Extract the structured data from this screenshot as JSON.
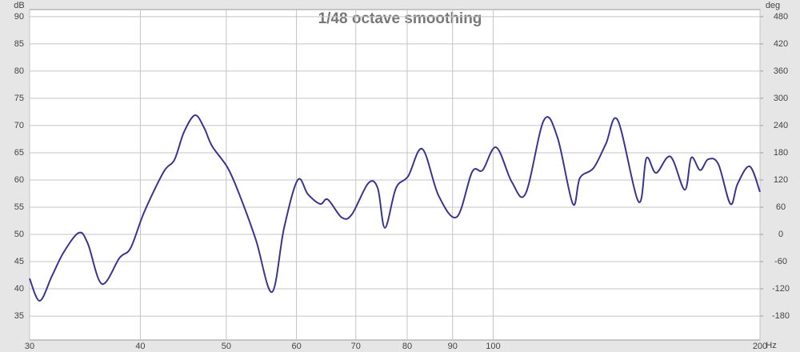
{
  "chart_data": {
    "type": "line",
    "title": "1/48 octave smoothing",
    "y_label": "dB",
    "y2_label": "deg",
    "x_label": "Hz",
    "x": [
      30,
      30.8,
      31.8,
      32.8,
      34.1,
      34.9,
      36.2,
      37.9,
      39.0,
      40.4,
      42.5,
      43.7,
      44.8,
      46.1,
      47.2,
      48.2,
      50.2,
      51.8,
      54.0,
      56.3,
      58.1,
      60.2,
      61.8,
      63.8,
      65.1,
      67.5,
      69.3,
      72.3,
      74.1,
      75.5,
      77.7,
      80.2,
      83.2,
      86.8,
      91.0,
      94.7,
      97.3,
      100.8,
      105.0,
      108.8,
      114.1,
      118.2,
      123.0,
      125.3,
      129.8,
      134.0,
      138.2,
      145.9,
      148.9,
      152.7,
      158.5,
      164.5,
      167.3,
      171.2,
      174.8,
      179.5,
      185.2,
      188.7,
      194.7,
      200
    ],
    "values": [
      41.9,
      37.8,
      42.4,
      46.8,
      50.3,
      48.3,
      40.9,
      45.7,
      47.5,
      54.1,
      61.5,
      63.7,
      68.8,
      71.9,
      69.6,
      66.2,
      62.2,
      57.1,
      49.0,
      39.4,
      51.2,
      60.0,
      57.4,
      55.6,
      56.4,
      53.1,
      53.7,
      59.4,
      58.5,
      51.2,
      58.5,
      60.7,
      65.7,
      57.1,
      53.2,
      61.5,
      61.8,
      66.0,
      59.6,
      57.5,
      71.0,
      67.8,
      55.6,
      60.4,
      62.2,
      66.6,
      71.0,
      56.0,
      64.0,
      61.3,
      64.3,
      58.2,
      64.1,
      61.8,
      63.8,
      62.9,
      55.6,
      59.3,
      62.5,
      57.8
    ],
    "color": "#3b3590",
    "xscale": "log",
    "xlim": [
      30,
      200
    ],
    "xticks": [
      30,
      40,
      50,
      60,
      70,
      80,
      90,
      100,
      200
    ],
    "ylim": [
      30.6,
      91.3
    ],
    "yticks": [
      35,
      40,
      45,
      50,
      55,
      60,
      65,
      70,
      75,
      80,
      85,
      90
    ],
    "y2lim": [
      -232.8,
      495.6
    ],
    "y2ticks": [
      -180,
      -120,
      -60,
      0,
      60,
      120,
      180,
      240,
      300,
      360,
      420,
      480
    ],
    "grid": true
  }
}
